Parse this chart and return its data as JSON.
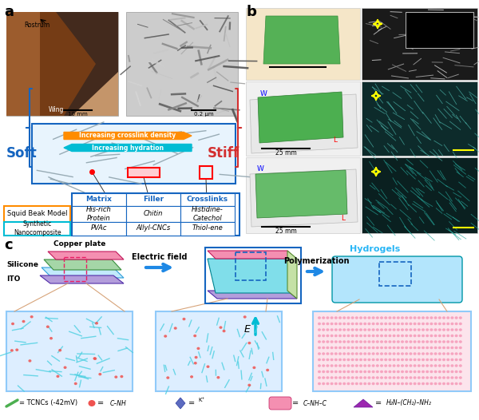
{
  "fig_width": 6.0,
  "fig_height": 5.26,
  "dpi": 100,
  "bg_color": "#ffffff",
  "panel_a_label": "a",
  "panel_b_label": "b",
  "panel_c_label": "c",
  "soft_text": "Soft",
  "stiff_text": "Stiff",
  "soft_color": "#1565C0",
  "stiff_color": "#D32F2F",
  "arrow_orange": "#FF8C00",
  "arrow_cyan": "#00BCD4",
  "arrow1_text": "Increasing crosslink density",
  "arrow2_text": "Increasing hydration",
  "table_headers": [
    "Matrix",
    "Filler",
    "Crosslinks"
  ],
  "row1_label": "Squid Beak Model",
  "row2_label": "Synthetic\nNanocomposite",
  "row1_data": [
    "His-rich\nProtein",
    "Chitin",
    "Histidine-\nCatechol"
  ],
  "row2_data": [
    "PVAc",
    "Allyl-CNCs",
    "Thiol-ene"
  ],
  "copper_plate_color": "#F48FB1",
  "silicone_color": "#A5D6A7",
  "ito_color": "#B39DDB",
  "teal_color": "#80DEEA",
  "electric_field_text": "Electric field",
  "polymerization_text": "Polymerization",
  "hydrogels_text": "Hydrogels",
  "hydrogels_color": "#29B6F6",
  "tcnc_color": "#4CAF50",
  "monomer_color": "#EF5350",
  "diamond_color": "#5C6BC0",
  "capsule_color": "#EC407A",
  "triangle_color": "#9C27B0",
  "nano_box_color": "#BBDEFB",
  "e_arrow_color": "#00BCD4",
  "conn_line_color": "#D7A47A"
}
